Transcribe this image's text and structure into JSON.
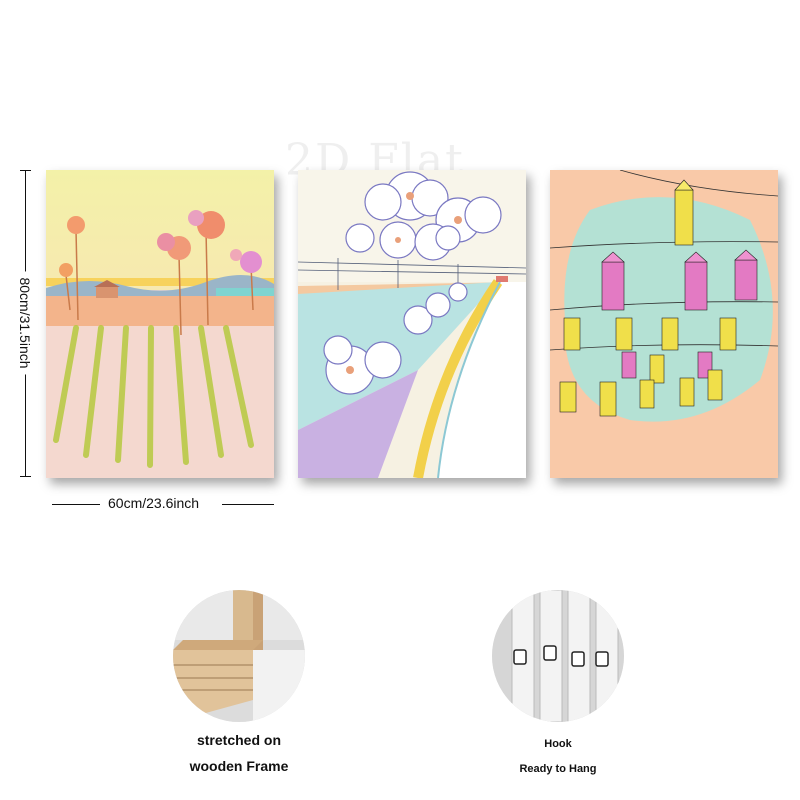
{
  "watermark": "2D Flat",
  "dimensions": {
    "height_label": "80cm/31.5inch",
    "width_label": "60cm/23.6inch"
  },
  "panels": [
    {
      "subject": "flower field landscape"
    },
    {
      "subject": "hibiscus flowers over rice fields"
    },
    {
      "subject": "hanging lanterns"
    }
  ],
  "details": {
    "frame_caption_line1": "stretched on",
    "frame_caption_line2": "wooden Frame",
    "hook_caption_line1": "Hook",
    "hook_caption_line2": "Ready to Hang"
  }
}
